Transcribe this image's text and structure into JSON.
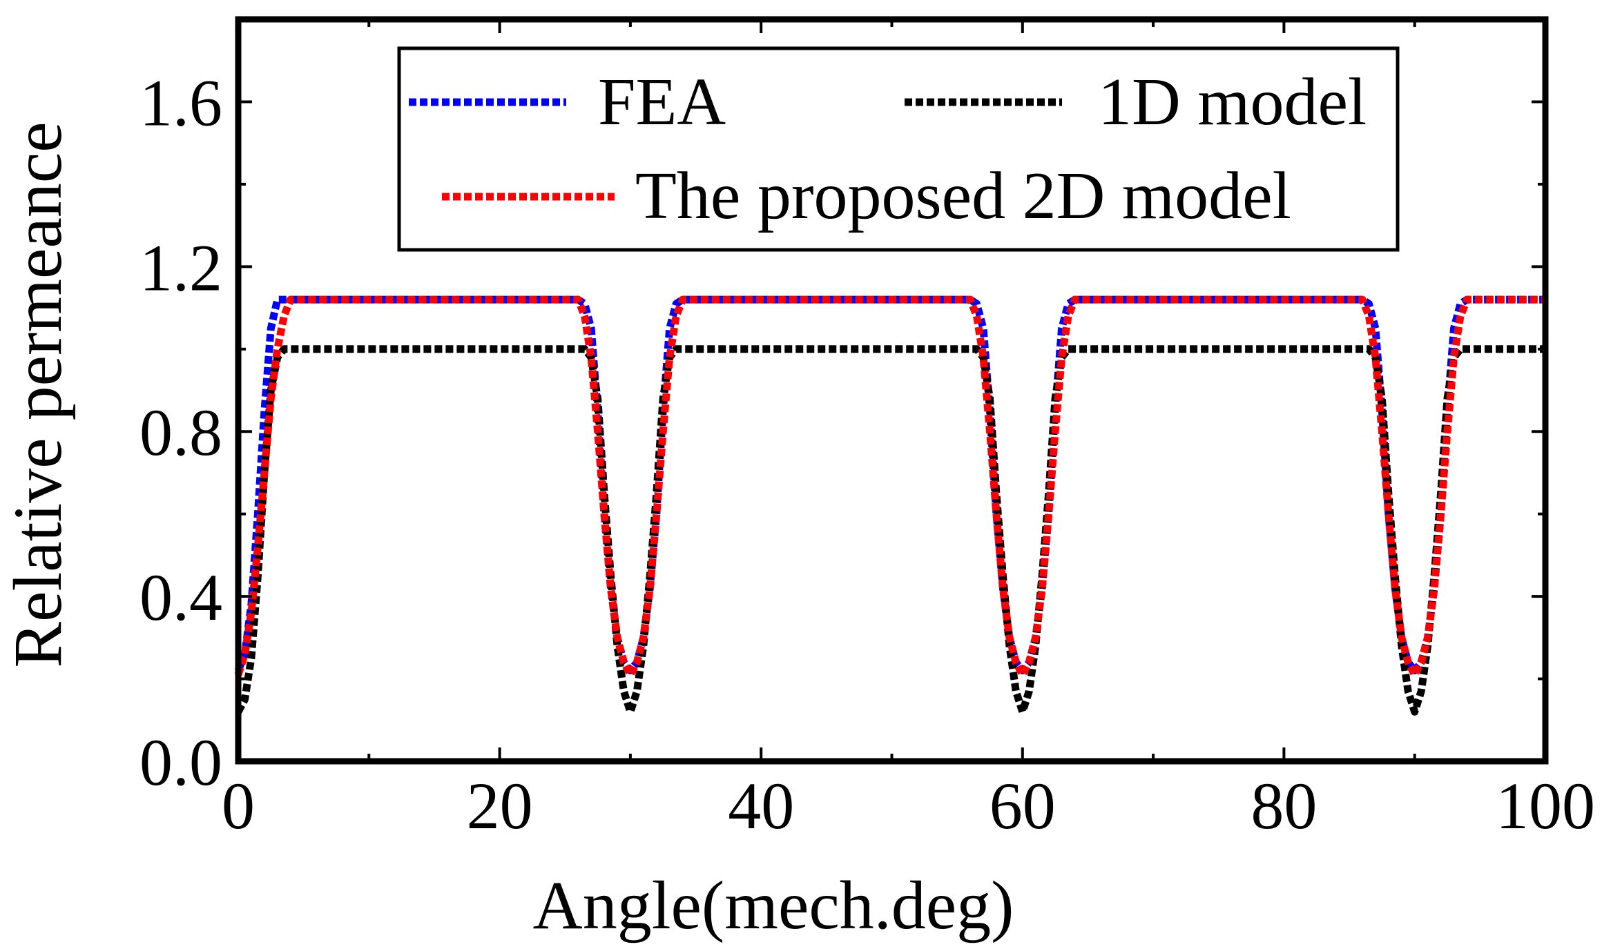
{
  "chart_data": {
    "type": "line",
    "title": "",
    "xlabel": "Angle(mech.deg)",
    "ylabel": "Relative permeance",
    "xlim": [
      0,
      100
    ],
    "ylim": [
      0,
      1.8
    ],
    "xticks": [
      0,
      20,
      40,
      60,
      80,
      100
    ],
    "yticks": [
      0.0,
      0.4,
      0.8,
      1.2,
      1.6
    ],
    "xtick_labels": [
      "0",
      "20",
      "40",
      "60",
      "80",
      "100"
    ],
    "ytick_labels": [
      "0.0",
      "0.4",
      "0.8",
      "1.2",
      "1.6"
    ],
    "grid": false,
    "legend_position": "top",
    "series": [
      {
        "name": "FEA",
        "color": "#0000ff",
        "style": "dotted",
        "x": [
          0,
          0.5,
          1,
          1.5,
          2,
          2.5,
          3,
          3.5,
          4,
          10,
          20,
          26,
          26.5,
          27,
          27.5,
          28,
          28.5,
          29,
          29.5,
          30,
          30.5,
          31,
          31.5,
          32,
          32.5,
          33,
          33.5,
          34,
          40,
          50,
          56,
          56.5,
          57,
          57.5,
          58,
          58.5,
          59,
          59.5,
          60,
          60.5,
          61,
          61.5,
          62,
          62.5,
          63,
          63.5,
          64,
          70,
          80,
          86,
          86.5,
          87,
          87.5,
          88,
          88.5,
          89,
          89.5,
          90,
          90.5,
          91,
          91.5,
          92,
          92.5,
          93,
          93.5,
          94,
          100
        ],
        "y": [
          0.22,
          0.26,
          0.38,
          0.6,
          0.85,
          1.05,
          1.12,
          1.12,
          1.12,
          1.12,
          1.12,
          1.12,
          1.11,
          1.05,
          0.85,
          0.6,
          0.42,
          0.3,
          0.24,
          0.22,
          0.24,
          0.3,
          0.42,
          0.6,
          0.85,
          1.05,
          1.11,
          1.12,
          1.12,
          1.12,
          1.12,
          1.11,
          1.05,
          0.85,
          0.6,
          0.42,
          0.3,
          0.24,
          0.22,
          0.24,
          0.3,
          0.42,
          0.6,
          0.85,
          1.05,
          1.11,
          1.12,
          1.12,
          1.12,
          1.12,
          1.11,
          1.05,
          0.85,
          0.6,
          0.42,
          0.3,
          0.24,
          0.22,
          0.24,
          0.3,
          0.42,
          0.6,
          0.85,
          1.05,
          1.11,
          1.12,
          1.12
        ]
      },
      {
        "name": "1D model",
        "color": "#000000",
        "style": "dotted",
        "x": [
          0,
          0.5,
          1,
          1.5,
          2,
          2.5,
          3,
          3.5,
          4,
          10,
          20,
          26,
          26.5,
          27,
          27.5,
          28,
          28.5,
          29,
          29.5,
          30,
          30.5,
          31,
          31.5,
          32,
          32.5,
          33,
          33.5,
          34,
          40,
          50,
          56,
          56.5,
          57,
          57.5,
          58,
          58.5,
          59,
          59.5,
          60,
          60.5,
          61,
          61.5,
          62,
          62.5,
          63,
          63.5,
          64,
          70,
          80,
          86,
          86.5,
          87,
          87.5,
          88,
          88.5,
          89,
          89.5,
          90,
          90.5,
          91,
          91.5,
          92,
          92.5,
          93,
          93.5,
          94,
          100
        ],
        "y": [
          0.12,
          0.15,
          0.25,
          0.45,
          0.7,
          0.9,
          0.98,
          1.0,
          1.0,
          1.0,
          1.0,
          1.0,
          1.0,
          0.98,
          0.88,
          0.65,
          0.45,
          0.28,
          0.17,
          0.12,
          0.17,
          0.28,
          0.45,
          0.65,
          0.88,
          0.98,
          1.0,
          1.0,
          1.0,
          1.0,
          1.0,
          1.0,
          0.98,
          0.88,
          0.65,
          0.45,
          0.28,
          0.17,
          0.12,
          0.17,
          0.28,
          0.45,
          0.65,
          0.88,
          0.98,
          1.0,
          1.0,
          1.0,
          1.0,
          1.0,
          1.0,
          0.98,
          0.88,
          0.65,
          0.45,
          0.28,
          0.17,
          0.12,
          0.17,
          0.28,
          0.45,
          0.65,
          0.88,
          0.98,
          1.0,
          1.0,
          1.0
        ]
      },
      {
        "name": "The proposed 2D model",
        "color": "#ff0000",
        "style": "dotted",
        "x": [
          0,
          0.5,
          1,
          1.5,
          2,
          2.5,
          3,
          3.5,
          4,
          4.5,
          10,
          20,
          26,
          26.5,
          27,
          27.5,
          28,
          28.5,
          29,
          29.5,
          30,
          30.5,
          31,
          31.5,
          32,
          32.5,
          33,
          33.5,
          34,
          40,
          50,
          56,
          56.5,
          57,
          57.5,
          58,
          58.5,
          59,
          59.5,
          60,
          60.5,
          61,
          61.5,
          62,
          62.5,
          63,
          63.5,
          64,
          70,
          80,
          86,
          86.5,
          87,
          87.5,
          88,
          88.5,
          89,
          89.5,
          90,
          90.5,
          91,
          91.5,
          92,
          92.5,
          93,
          93.5,
          94,
          100
        ],
        "y": [
          0.21,
          0.26,
          0.36,
          0.52,
          0.7,
          0.88,
          1.0,
          1.08,
          1.12,
          1.12,
          1.12,
          1.12,
          1.12,
          1.08,
          0.98,
          0.8,
          0.6,
          0.42,
          0.3,
          0.24,
          0.21,
          0.24,
          0.3,
          0.42,
          0.6,
          0.8,
          0.98,
          1.08,
          1.12,
          1.12,
          1.12,
          1.12,
          1.08,
          0.98,
          0.8,
          0.6,
          0.42,
          0.3,
          0.24,
          0.21,
          0.24,
          0.3,
          0.42,
          0.6,
          0.8,
          0.98,
          1.08,
          1.12,
          1.12,
          1.12,
          1.12,
          1.08,
          0.98,
          0.8,
          0.6,
          0.42,
          0.3,
          0.24,
          0.21,
          0.24,
          0.3,
          0.42,
          0.6,
          0.8,
          0.98,
          1.08,
          1.12,
          1.12
        ]
      }
    ]
  }
}
